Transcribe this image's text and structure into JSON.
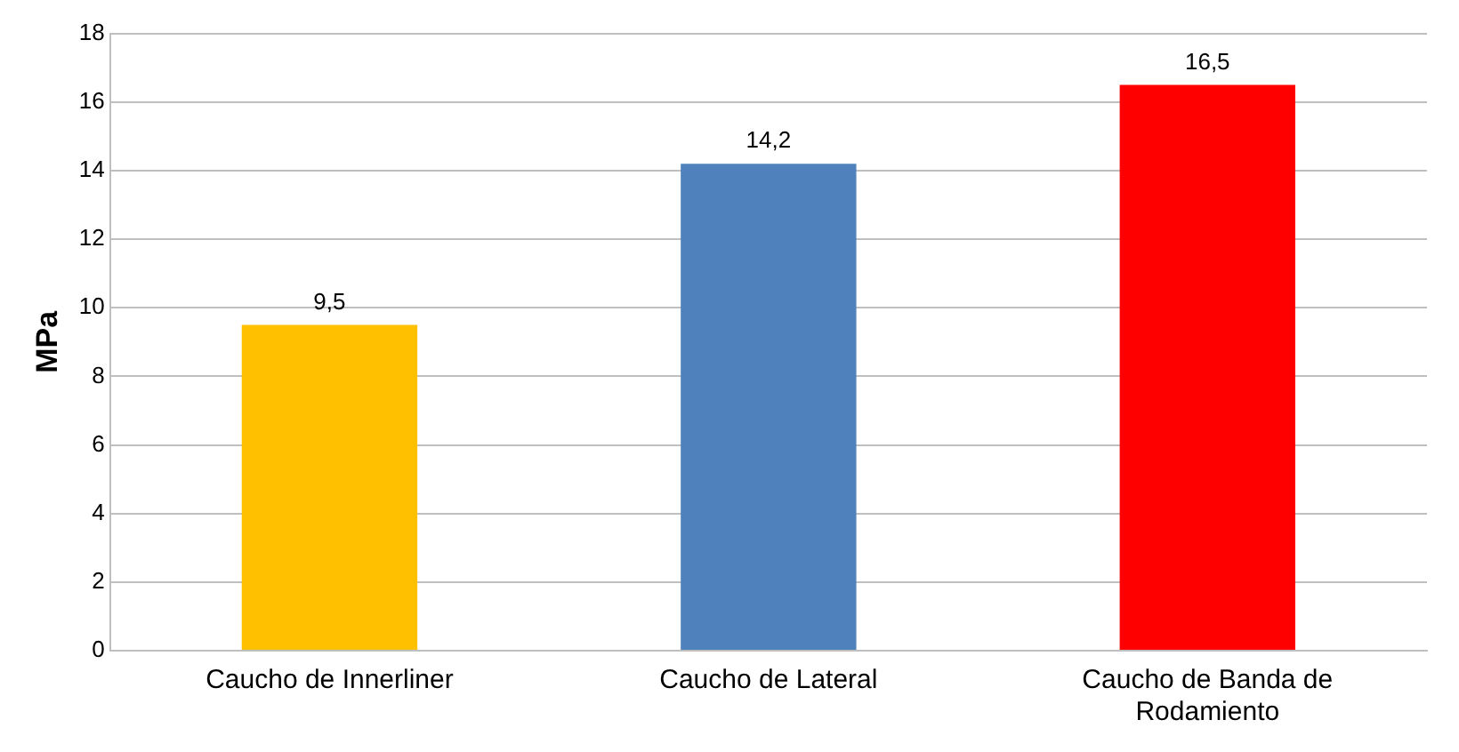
{
  "chart_data": {
    "type": "bar",
    "ylabel": "MPa",
    "categories": [
      "Caucho de Innerliner",
      "Caucho de Lateral",
      "Caucho de Banda de Rodamiento"
    ],
    "values": [
      9.5,
      14.2,
      16.5
    ],
    "colors": [
      "#ffc000",
      "#4f81bd",
      "#ff0000"
    ],
    "value_labels": [
      "9,5",
      "14,2",
      "16,5"
    ],
    "ylim": [
      0,
      18
    ],
    "yticks": [
      0,
      2,
      4,
      6,
      8,
      10,
      12,
      14,
      16,
      18
    ],
    "grid": "y",
    "legend": false
  }
}
